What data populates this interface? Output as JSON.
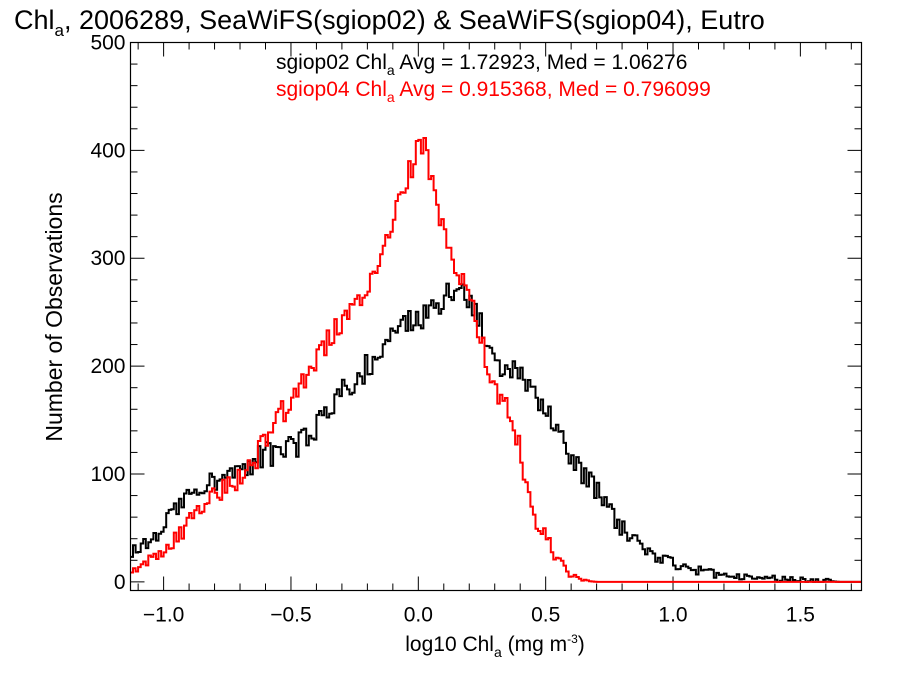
{
  "chart_data": {
    "type": "histogram",
    "title": {
      "main": "Chl",
      "sub": "a",
      "rest": ", 2006289, SeaWiFS(sgiop02) & SeaWiFS(sgiop04), Eutro"
    },
    "xlabel": {
      "pre": "log10 Chl",
      "sub": "a",
      "mid": " (mg m",
      "sup": "-3",
      "post": ")"
    },
    "ylabel": "Number of Observations",
    "xlim": [
      -1.13,
      1.74
    ],
    "ylim": [
      -8,
      500
    ],
    "x_ticks": [
      {
        "value": -1.0,
        "label": "−1.0"
      },
      {
        "value": -0.5,
        "label": "−0.5"
      },
      {
        "value": 0.0,
        "label": "0.0"
      },
      {
        "value": 0.5,
        "label": "0.5"
      },
      {
        "value": 1.0,
        "label": "1.0"
      },
      {
        "value": 1.5,
        "label": "1.5"
      }
    ],
    "y_ticks": [
      {
        "value": 0,
        "label": "0"
      },
      {
        "value": 100,
        "label": "100"
      },
      {
        "value": 200,
        "label": "200"
      },
      {
        "value": 300,
        "label": "300"
      },
      {
        "value": 400,
        "label": "400"
      },
      {
        "value": 500,
        "label": "500"
      }
    ],
    "grid": false,
    "legend_position": "top-right",
    "bin_width": 0.01,
    "series": [
      {
        "name": "sgiop02",
        "label_pre": "sgiop02 Chl",
        "label_sub": "a",
        "label_post": " Avg = 1.72923, Med = 1.06276",
        "color": "#000000",
        "points": [
          [
            -1.13,
            25
          ],
          [
            -1.05,
            40
          ],
          [
            -1.0,
            50
          ],
          [
            -0.95,
            70
          ],
          [
            -0.9,
            80
          ],
          [
            -0.85,
            90
          ],
          [
            -0.8,
            95
          ],
          [
            -0.75,
            100
          ],
          [
            -0.7,
            105
          ],
          [
            -0.65,
            110
          ],
          [
            -0.6,
            120
          ],
          [
            -0.55,
            115
          ],
          [
            -0.5,
            125
          ],
          [
            -0.45,
            130
          ],
          [
            -0.4,
            145
          ],
          [
            -0.35,
            160
          ],
          [
            -0.3,
            175
          ],
          [
            -0.25,
            185
          ],
          [
            -0.2,
            200
          ],
          [
            -0.15,
            215
          ],
          [
            -0.1,
            230
          ],
          [
            -0.05,
            240
          ],
          [
            0.0,
            245
          ],
          [
            0.05,
            250
          ],
          [
            0.1,
            262
          ],
          [
            0.15,
            275
          ],
          [
            0.2,
            265
          ],
          [
            0.25,
            235
          ],
          [
            0.3,
            205
          ],
          [
            0.35,
            195
          ],
          [
            0.4,
            195
          ],
          [
            0.45,
            180
          ],
          [
            0.5,
            160
          ],
          [
            0.55,
            140
          ],
          [
            0.6,
            110
          ],
          [
            0.65,
            100
          ],
          [
            0.7,
            85
          ],
          [
            0.75,
            65
          ],
          [
            0.8,
            50
          ],
          [
            0.85,
            40
          ],
          [
            0.9,
            30
          ],
          [
            0.95,
            22
          ],
          [
            1.0,
            18
          ],
          [
            1.05,
            14
          ],
          [
            1.1,
            11
          ],
          [
            1.15,
            8
          ],
          [
            1.2,
            7
          ],
          [
            1.25,
            5
          ],
          [
            1.3,
            4
          ],
          [
            1.35,
            3
          ],
          [
            1.4,
            3
          ],
          [
            1.45,
            2
          ],
          [
            1.5,
            2
          ],
          [
            1.55,
            1
          ],
          [
            1.6,
            1
          ],
          [
            1.65,
            0
          ],
          [
            1.74,
            0
          ]
        ]
      },
      {
        "name": "sgiop04",
        "label_pre": "sgiop04 Chl",
        "label_sub": "a",
        "label_post": " Avg = 0.915368, Med = 0.796099",
        "color": "#ff0000",
        "points": [
          [
            -1.13,
            10
          ],
          [
            -1.05,
            20
          ],
          [
            -1.0,
            30
          ],
          [
            -0.95,
            40
          ],
          [
            -0.9,
            55
          ],
          [
            -0.85,
            70
          ],
          [
            -0.8,
            80
          ],
          [
            -0.75,
            90
          ],
          [
            -0.7,
            95
          ],
          [
            -0.65,
            110
          ],
          [
            -0.6,
            130
          ],
          [
            -0.55,
            150
          ],
          [
            -0.5,
            170
          ],
          [
            -0.45,
            190
          ],
          [
            -0.4,
            205
          ],
          [
            -0.35,
            225
          ],
          [
            -0.3,
            240
          ],
          [
            -0.25,
            255
          ],
          [
            -0.2,
            270
          ],
          [
            -0.15,
            300
          ],
          [
            -0.1,
            340
          ],
          [
            -0.05,
            370
          ],
          [
            0.0,
            400
          ],
          [
            0.02,
            408
          ],
          [
            0.05,
            380
          ],
          [
            0.1,
            320
          ],
          [
            0.15,
            285
          ],
          [
            0.2,
            275
          ],
          [
            0.25,
            220
          ],
          [
            0.3,
            180
          ],
          [
            0.35,
            160
          ],
          [
            0.4,
            120
          ],
          [
            0.45,
            65
          ],
          [
            0.5,
            40
          ],
          [
            0.55,
            20
          ],
          [
            0.6,
            5
          ],
          [
            0.65,
            1
          ],
          [
            0.7,
            0
          ],
          [
            1.74,
            0
          ]
        ]
      }
    ]
  }
}
